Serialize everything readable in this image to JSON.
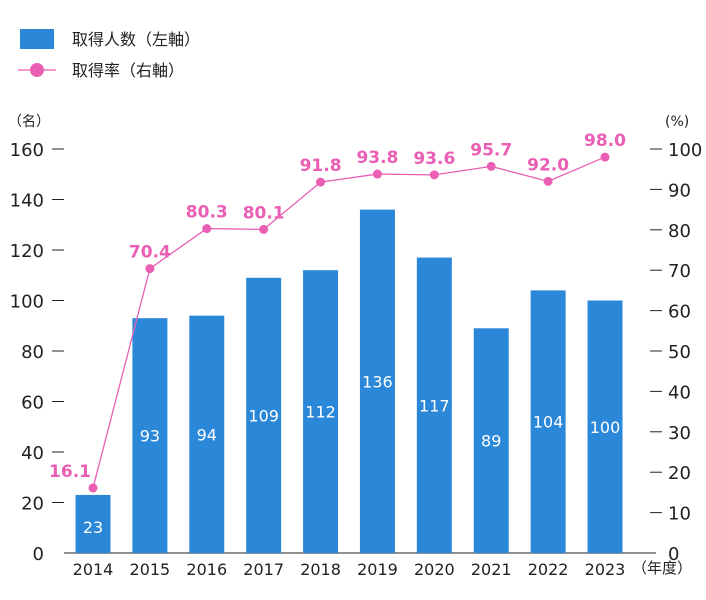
{
  "chart_data": {
    "type": "bar+line",
    "categories": [
      "2014",
      "2015",
      "2016",
      "2017",
      "2018",
      "2019",
      "2020",
      "2021",
      "2022",
      "2023"
    ],
    "series": [
      {
        "name": "取得人数（左軸）",
        "type": "bar",
        "axis": "left",
        "values": [
          23,
          93,
          94,
          109,
          112,
          136,
          117,
          89,
          104,
          100
        ],
        "labels": [
          "23",
          "93",
          "94",
          "109",
          "112",
          "136",
          "117",
          "89",
          "104",
          "100"
        ],
        "color": "#2b88d8"
      },
      {
        "name": "取得率（右軸）",
        "type": "line",
        "axis": "right",
        "values": [
          16.1,
          70.4,
          80.3,
          80.1,
          91.8,
          93.8,
          93.6,
          95.7,
          92.0,
          98.0
        ],
        "labels": [
          "16.1",
          "70.4",
          "80.3",
          "80.1",
          "91.8",
          "93.8",
          "93.6",
          "95.7",
          "92.0",
          "98.0"
        ],
        "color": "#ea5fb4"
      }
    ],
    "left_axis": {
      "unit": "（名）",
      "ylim": [
        0,
        160
      ],
      "ticks": [
        "0",
        "20",
        "40",
        "60",
        "80",
        "100",
        "120",
        "140",
        "160"
      ]
    },
    "right_axis": {
      "unit": "(%)",
      "ylim": [
        0,
        100
      ],
      "ticks": [
        "0",
        "10",
        "20",
        "30",
        "40",
        "50",
        "60",
        "70",
        "80",
        "90",
        "100"
      ]
    },
    "xlabel": "（年度）",
    "legend_position": "top-left"
  }
}
